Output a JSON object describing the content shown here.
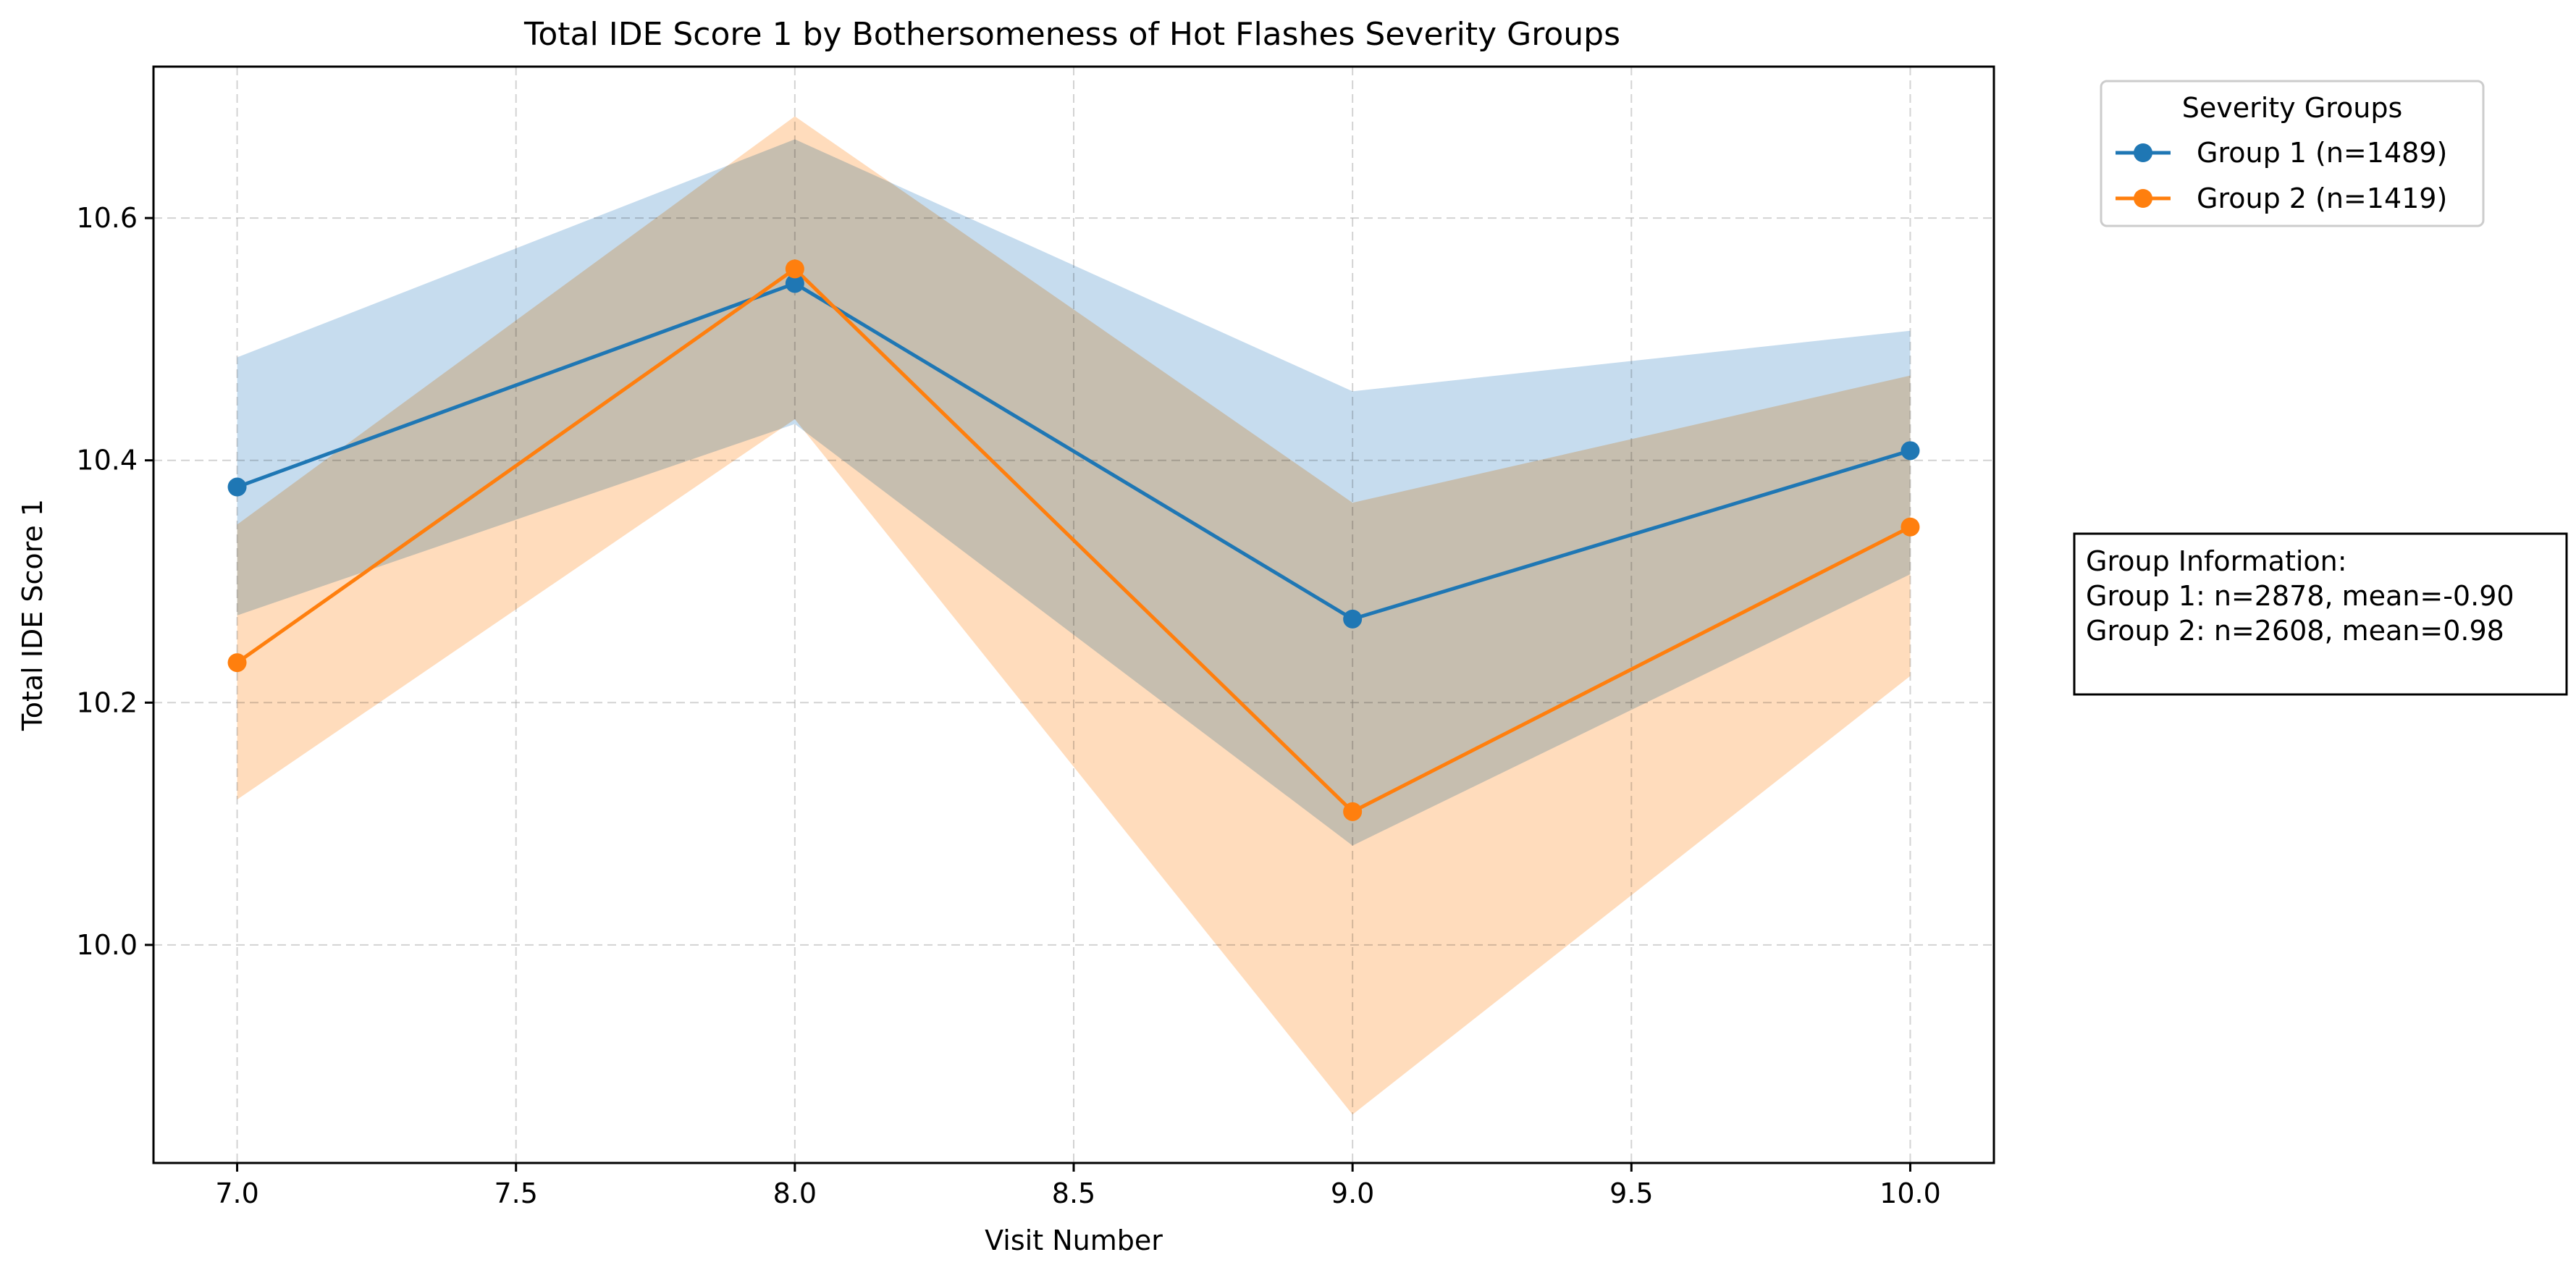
{
  "chart_data": {
    "type": "line",
    "title": "Total IDE Score 1 by Bothersomeness of Hot Flashes Severity Groups",
    "xlabel": "Visit Number",
    "ylabel": "Total IDE Score 1",
    "xlim": [
      6.85,
      10.15
    ],
    "ylim": [
      9.82,
      10.725
    ],
    "xticks": [
      7.0,
      7.5,
      8.0,
      8.5,
      9.0,
      9.5,
      10.0
    ],
    "xtick_labels": [
      "7.0",
      "7.5",
      "8.0",
      "8.5",
      "9.0",
      "9.5",
      "10.0"
    ],
    "yticks": [
      10.0,
      10.2,
      10.4,
      10.6
    ],
    "ytick_labels": [
      "10.0",
      "10.2",
      "10.4",
      "10.6"
    ],
    "grid": true,
    "legend": {
      "title": "Severity Groups",
      "placement": "outside-top-right"
    },
    "x": [
      7.0,
      8.0,
      9.0,
      10.0
    ],
    "series": [
      {
        "name": "Group 1 (n=1489)",
        "color": "#1f77b4",
        "band_color": "#c6dcee",
        "values": [
          10.378,
          10.546,
          10.269,
          10.408
        ],
        "lower": [
          10.272,
          10.43,
          10.082,
          10.306
        ],
        "upper": [
          10.485,
          10.665,
          10.457,
          10.507
        ]
      },
      {
        "name": "Group 2 (n=1419)",
        "color": "#ff7f0e",
        "band_color": "#ffdcbc",
        "values": [
          10.233,
          10.558,
          10.11,
          10.345
        ],
        "lower": [
          10.12,
          10.434,
          9.86,
          10.222
        ],
        "upper": [
          10.347,
          10.684,
          10.365,
          10.47
        ]
      }
    ],
    "annotation": {
      "lines": [
        "Group Information:",
        "Group 1: n=2878, mean=-0.90",
        "Group 2: n=2608, mean=0.98"
      ]
    }
  }
}
